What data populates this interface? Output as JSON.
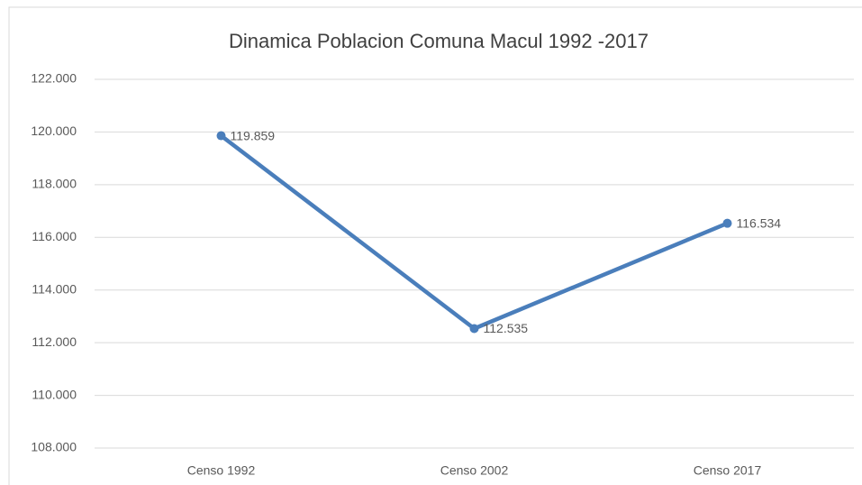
{
  "chart_data": {
    "type": "line",
    "title": "Dinamica Poblacion Comuna Macul 1992 -2017",
    "categories": [
      "Censo 1992",
      "Censo 2002",
      "Censo 2017"
    ],
    "series": [
      {
        "name": "Poblacion",
        "color": "#4a7ebb",
        "values": [
          119859,
          112535,
          116534
        ],
        "value_labels": [
          "119.859",
          "112.535",
          "116.534"
        ]
      }
    ],
    "ylim": [
      108000,
      122000
    ],
    "yticks": [
      {
        "value": 108000,
        "label": "108.000"
      },
      {
        "value": 110000,
        "label": "110.000"
      },
      {
        "value": 112000,
        "label": "112.000"
      },
      {
        "value": 114000,
        "label": "114.000"
      },
      {
        "value": 116000,
        "label": "116.000"
      },
      {
        "value": 118000,
        "label": "118.000"
      },
      {
        "value": 120000,
        "label": "120.000"
      },
      {
        "value": 122000,
        "label": "122.000"
      }
    ],
    "grid": true
  }
}
